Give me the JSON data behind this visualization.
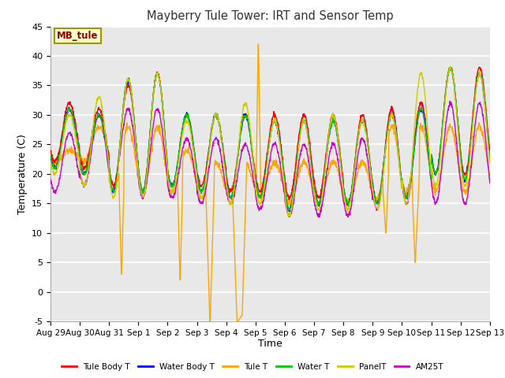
{
  "title": "Mayberry Tule Tower: IRT and Sensor Temp",
  "xlabel": "Time",
  "ylabel": "Temperature (C)",
  "ylim": [
    -5,
    45
  ],
  "yticks": [
    -5,
    0,
    5,
    10,
    15,
    20,
    25,
    30,
    35,
    40,
    45
  ],
  "annotation_label": "MB_tule",
  "annotation_color": "#8b0000",
  "annotation_bg": "#ffffcc",
  "annotation_border": "#999900",
  "series": [
    {
      "label": "Tule Body T",
      "color": "#ff0000"
    },
    {
      "label": "Water Body T",
      "color": "#0000ff"
    },
    {
      "label": "Tule T",
      "color": "#ffa500"
    },
    {
      "label": "Water T",
      "color": "#00cc00"
    },
    {
      "label": "PanelT",
      "color": "#cccc00"
    },
    {
      "label": "AM25T",
      "color": "#cc00cc"
    }
  ],
  "x_tick_labels": [
    "Aug 29",
    "Aug 30",
    "Aug 31",
    "Sep 1",
    "Sep 2",
    "Sep 3",
    "Sep 4",
    "Sep 5",
    "Sep 6",
    "Sep 7",
    "Sep 8",
    "Sep 9",
    "Sep 10",
    "Sep 11",
    "Sep 12",
    "Sep 13"
  ],
  "n_days": 15,
  "points_per_day": 96
}
